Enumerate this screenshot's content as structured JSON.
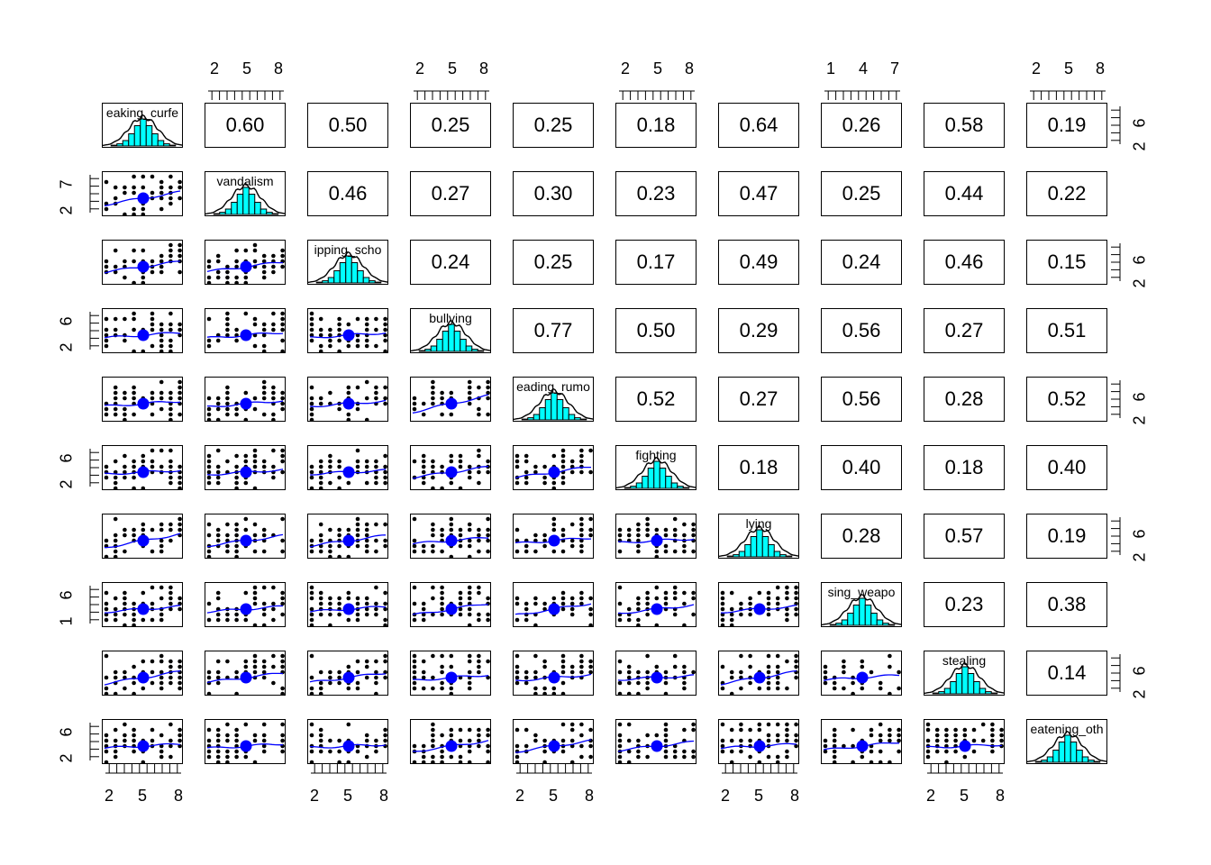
{
  "chart_data": {
    "type": "scatter",
    "subtype": "pairs-panels",
    "variables": [
      "breaking_curfew",
      "vandalism",
      "skipping_school",
      "bullying",
      "spreading_rumors",
      "fighting",
      "lying",
      "using_weapon",
      "stealing",
      "threatening_others"
    ],
    "diagonal_labels": [
      "eaking_curfe",
      "vandalism",
      "ipping_scho",
      "bullying",
      "eading_rumo",
      "fighting",
      "lying",
      "sing_weapo",
      "stealing",
      "eatening_oth"
    ],
    "correlations": [
      [
        null,
        0.6,
        0.5,
        0.25,
        0.25,
        0.18,
        0.64,
        0.26,
        0.58,
        0.19
      ],
      [
        0.6,
        null,
        0.46,
        0.27,
        0.3,
        0.23,
        0.47,
        0.25,
        0.44,
        0.22
      ],
      [
        0.5,
        0.46,
        null,
        0.24,
        0.25,
        0.17,
        0.49,
        0.24,
        0.46,
        0.15
      ],
      [
        0.25,
        0.27,
        0.24,
        null,
        0.77,
        0.5,
        0.29,
        0.56,
        0.27,
        0.51
      ],
      [
        0.25,
        0.3,
        0.25,
        0.77,
        null,
        0.52,
        0.27,
        0.56,
        0.28,
        0.52
      ],
      [
        0.18,
        0.23,
        0.17,
        0.5,
        0.52,
        null,
        0.18,
        0.4,
        0.18,
        0.4
      ],
      [
        0.64,
        0.47,
        0.49,
        0.29,
        0.27,
        0.18,
        null,
        0.28,
        0.57,
        0.19
      ],
      [
        0.26,
        0.25,
        0.24,
        0.56,
        0.56,
        0.4,
        0.28,
        null,
        0.23,
        0.38
      ],
      [
        0.58,
        0.44,
        0.46,
        0.27,
        0.28,
        0.18,
        0.57,
        0.23,
        null,
        0.14
      ],
      [
        0.19,
        0.22,
        0.15,
        0.51,
        0.52,
        0.4,
        0.19,
        0.38,
        0.14,
        null
      ]
    ],
    "axis_ticks": {
      "top": [
        {
          "col": 1,
          "labels": [
            "2",
            "5",
            "8"
          ]
        },
        {
          "col": 3,
          "labels": [
            "2",
            "5",
            "8"
          ]
        },
        {
          "col": 5,
          "labels": [
            "2",
            "5",
            "8"
          ]
        },
        {
          "col": 7,
          "labels": [
            "1",
            "4",
            "7"
          ]
        },
        {
          "col": 9,
          "labels": [
            "2",
            "5",
            "8"
          ]
        }
      ],
      "bottom": [
        {
          "col": 0,
          "labels": [
            "2",
            "5",
            "8"
          ]
        },
        {
          "col": 2,
          "labels": [
            "2",
            "5",
            "8"
          ]
        },
        {
          "col": 4,
          "labels": [
            "2",
            "5",
            "8"
          ]
        },
        {
          "col": 6,
          "labels": [
            "2",
            "5",
            "8"
          ]
        },
        {
          "col": 8,
          "labels": [
            "2",
            "5",
            "8"
          ]
        }
      ],
      "left": [
        {
          "row": 1,
          "labels": [
            "2",
            "7"
          ]
        },
        {
          "row": 3,
          "labels": [
            "2",
            "6"
          ]
        },
        {
          "row": 5,
          "labels": [
            "2",
            "6"
          ]
        },
        {
          "row": 7,
          "labels": [
            "1",
            "6"
          ]
        },
        {
          "row": 9,
          "labels": [
            "2",
            "6"
          ]
        }
      ],
      "right": [
        {
          "row": 0,
          "labels": [
            "2",
            "6"
          ]
        },
        {
          "row": 2,
          "labels": [
            "2",
            "6"
          ]
        },
        {
          "row": 4,
          "labels": [
            "2",
            "6"
          ]
        },
        {
          "row": 6,
          "labels": [
            "2",
            "6"
          ]
        },
        {
          "row": 8,
          "labels": [
            "2",
            "6"
          ]
        }
      ]
    },
    "upper_panel": "correlation coefficients",
    "lower_panel": "scatter with loess smoother and mean ellipse",
    "diagonal_panel": "histogram with density curve"
  },
  "colors": {
    "histogram_fill": "#00FFFF",
    "smoother": "#0000FF",
    "mean_point": "#0000FF",
    "points": "#000000"
  }
}
